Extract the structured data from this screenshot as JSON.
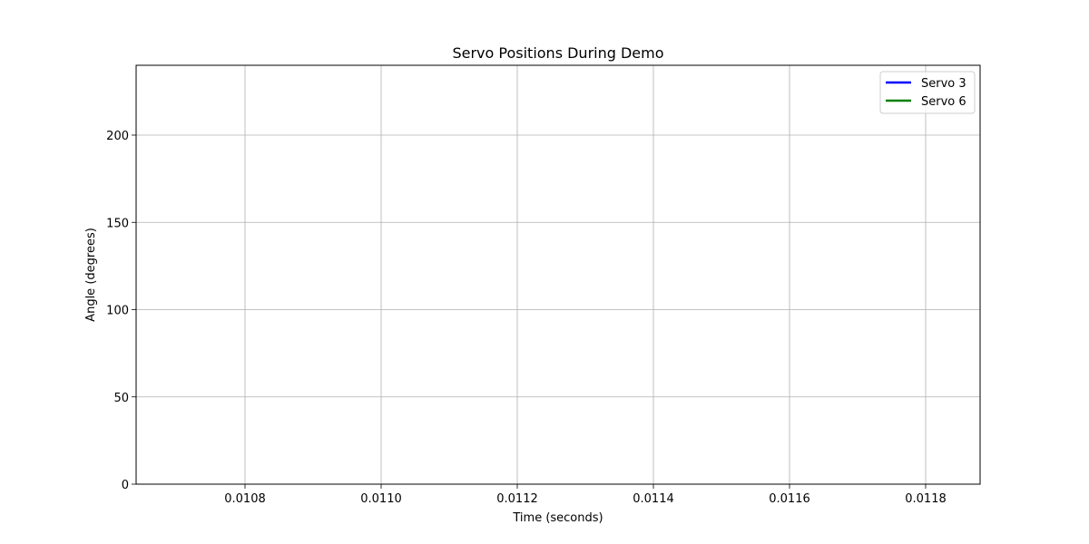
{
  "chart_data": {
    "type": "line",
    "title": "Servo Positions During Demo",
    "xlabel": "Time (seconds)",
    "ylabel": "Angle (degrees)",
    "xlim": [
      0.01064,
      0.01188
    ],
    "ylim": [
      0,
      240
    ],
    "x_ticks": [
      0.0108,
      0.011,
      0.0112,
      0.0114,
      0.0116,
      0.0118
    ],
    "x_tick_labels": [
      "0.0108",
      "0.0110",
      "0.0112",
      "0.0114",
      "0.0116",
      "0.0118"
    ],
    "y_ticks": [
      0,
      50,
      100,
      150,
      200
    ],
    "y_tick_labels": [
      "0",
      "50",
      "100",
      "150",
      "200"
    ],
    "grid": true,
    "legend_position": "top-right",
    "series": [
      {
        "name": "Servo 3",
        "color": "#0000ff",
        "x": [],
        "y": []
      },
      {
        "name": "Servo 6",
        "color": "#008000",
        "x": [],
        "y": []
      }
    ]
  }
}
